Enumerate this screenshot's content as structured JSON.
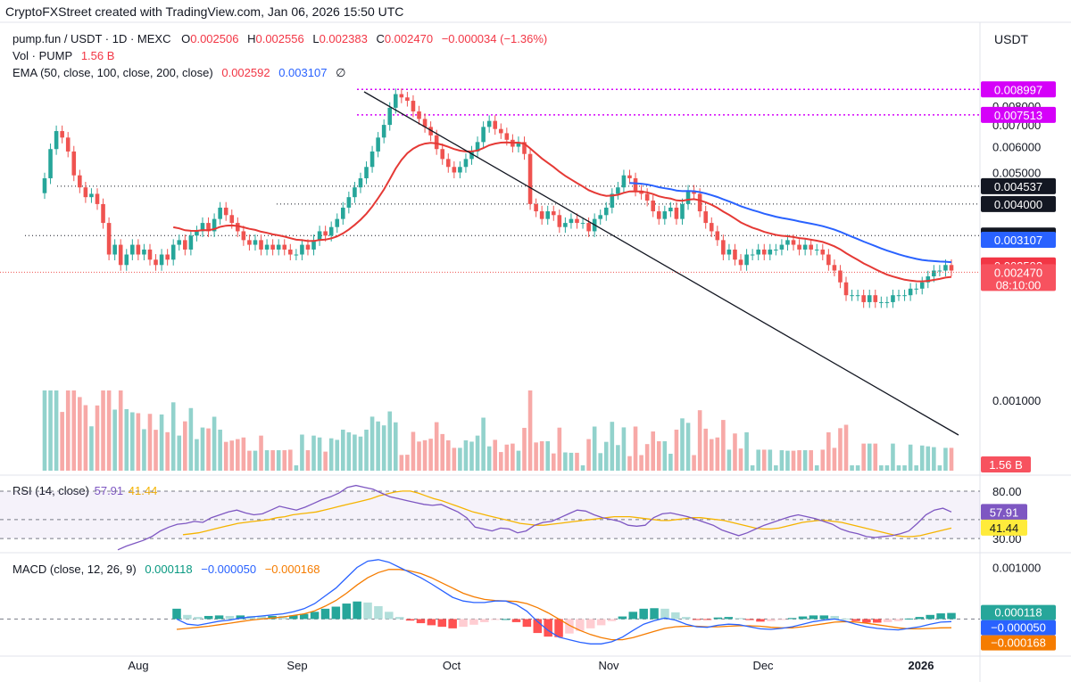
{
  "credit": "CryptoFXStreet created with TradingView.com, Jan 06, 2026 15:50 UTC",
  "currency": "USDT",
  "header": {
    "symbol": "pump.fun / USDT · 1D · MEXC",
    "o_label": "O",
    "o_value": "0.002506",
    "h_label": "H",
    "h_value": "0.002556",
    "l_label": "L",
    "l_value": "0.002383",
    "c_label": "C",
    "c_value": "0.002470",
    "change": "−0.000034 (−1.36%)",
    "vol_label": "Vol · PUMP",
    "vol_value": "1.56 B",
    "ema_label": "EMA (50, close, 100, close, 200, close)",
    "ema1_value": "0.002592",
    "ema2_value": "0.003107",
    "ema3_value": "∅"
  },
  "rsi_header": {
    "label": "RSI (14, close)",
    "v1": "57.91",
    "v2": "41.44"
  },
  "macd_header": {
    "label": "MACD (close, 12, 26, 9)",
    "v1": "0.000118",
    "v2": "−0.000050",
    "v3": "−0.000168"
  },
  "colors": {
    "up": "#26a69a",
    "down": "#ef5350",
    "ema50": "#e53935",
    "ema100": "#2962ff",
    "rsi": "#7e57c2",
    "rsi_ma": "#f5b400",
    "macd": "#2962ff",
    "signal": "#f57c00",
    "level": "#d500f9"
  },
  "chart_data": [
    {
      "type": "candlestick",
      "title": "pump.fun / USDT · 1D · MEXC",
      "x_ticks": [
        "Aug",
        "Sep",
        "Oct",
        "Nov",
        "Dec",
        "2026"
      ],
      "y_ticks": [
        "0.008000",
        "0.007000",
        "0.006000",
        "0.005000",
        "0.004000",
        "0.001000"
      ],
      "ylim": [
        0.0006,
        0.0093
      ],
      "y_scale": "log",
      "grid": false,
      "closes": [
        0.0048,
        0.0059,
        0.0067,
        0.0064,
        0.0058,
        0.0049,
        0.0045,
        0.0042,
        0.0043,
        0.004,
        0.0035,
        0.0028,
        0.003,
        0.0026,
        0.0028,
        0.003,
        0.0028,
        0.0029,
        0.0027,
        0.0026,
        0.0028,
        0.0027,
        0.003,
        0.0031,
        0.0029,
        0.0032,
        0.0033,
        0.0035,
        0.0033,
        0.0036,
        0.0039,
        0.0037,
        0.0035,
        0.0033,
        0.0031,
        0.003,
        0.0031,
        0.0029,
        0.003,
        0.0029,
        0.003,
        0.0029,
        0.0028,
        0.0028,
        0.003,
        0.0029,
        0.0031,
        0.0033,
        0.0032,
        0.0034,
        0.0036,
        0.0039,
        0.0042,
        0.0045,
        0.0048,
        0.0052,
        0.0058,
        0.0064,
        0.007,
        0.0079,
        0.0087,
        0.0085,
        0.0083,
        0.0077,
        0.0073,
        0.0069,
        0.0065,
        0.0059,
        0.0055,
        0.0052,
        0.005,
        0.0052,
        0.0055,
        0.0058,
        0.0062,
        0.0069,
        0.0072,
        0.0068,
        0.0066,
        0.0063,
        0.006,
        0.0062,
        0.0057,
        0.004,
        0.0038,
        0.0036,
        0.0038,
        0.0037,
        0.0034,
        0.0035,
        0.0036,
        0.0035,
        0.0035,
        0.0033,
        0.0036,
        0.0037,
        0.0039,
        0.0043,
        0.0045,
        0.0049,
        0.0048,
        0.0044,
        0.0043,
        0.0041,
        0.0038,
        0.0036,
        0.0038,
        0.0039,
        0.0036,
        0.004,
        0.0044,
        0.0043,
        0.0038,
        0.0035,
        0.0033,
        0.0031,
        0.0028,
        0.0029,
        0.0027,
        0.0026,
        0.0028,
        0.0028,
        0.0029,
        0.0028,
        0.0029,
        0.0029,
        0.003,
        0.0031,
        0.003,
        0.0029,
        0.003,
        0.0029,
        0.0029,
        0.0028,
        0.0026,
        0.0025,
        0.0023,
        0.0021,
        0.0021,
        0.0021,
        0.002,
        0.0021,
        0.002,
        0.002,
        0.002,
        0.0021,
        0.0021,
        0.0021,
        0.0022,
        0.0022,
        0.0023,
        0.0024,
        0.0025,
        0.0025,
        0.0026,
        0.0025
      ],
      "levels": [
        {
          "label": "0.008997",
          "value": 0.008997,
          "style": "magenta-dotted"
        },
        {
          "label": "0.007513",
          "value": 0.007513,
          "style": "magenta-dotted"
        },
        {
          "label": "0.004537",
          "value": 0.004537,
          "style": "dark-dotted"
        },
        {
          "label": "0.004000",
          "value": 0.004,
          "style": "dark-dotted"
        },
        {
          "label": "0.003202",
          "value": 0.003202,
          "style": "dark-dotted"
        }
      ],
      "price_tags": [
        {
          "label": "0.008997",
          "value": 0.008997
        },
        {
          "label": "0.007513",
          "value": 0.007513
        },
        {
          "label": "0.004537",
          "value": 0.004537
        },
        {
          "label": "0.004000",
          "value": 0.004
        },
        {
          "label": "0.003202",
          "value": 0.003202
        },
        {
          "label": "0.003107",
          "value": 0.003107
        },
        {
          "label": "0.002592",
          "value": 0.002592
        },
        {
          "label": "0.002470",
          "value": 0.00247,
          "sub": "08:10:00"
        }
      ],
      "volume_tag": "1.56 B"
    },
    {
      "type": "line",
      "title": "RSI (14, close)",
      "y_ticks": [
        "80.00",
        "30.00"
      ],
      "ylim": [
        15,
        95
      ],
      "series": [
        {
          "name": "RSI",
          "last_label": "57.91",
          "values": [
            18,
            22,
            25,
            28,
            32,
            38,
            42,
            45,
            46,
            48,
            47,
            52,
            55,
            58,
            60,
            57,
            55,
            56,
            60,
            64,
            62,
            60,
            63,
            67,
            71,
            74,
            78,
            84,
            86,
            84,
            82,
            78,
            74,
            72,
            70,
            68,
            66,
            65,
            66,
            62,
            58,
            52,
            42,
            40,
            38,
            41,
            40,
            36,
            38,
            44,
            47,
            48,
            52,
            56,
            60,
            59,
            55,
            52,
            50,
            48,
            44,
            43,
            44,
            52,
            56,
            57,
            55,
            53,
            50,
            47,
            44,
            39,
            36,
            33,
            36,
            40,
            44,
            47,
            50,
            53,
            55,
            53,
            51,
            48,
            45,
            40,
            37,
            35,
            32,
            31,
            32,
            33,
            35,
            38,
            46,
            55,
            60,
            62,
            58
          ]
        },
        {
          "name": "RSI MA",
          "last_label": "41.44",
          "values": [
            34,
            35,
            36,
            38,
            40,
            42,
            44,
            46,
            47,
            48,
            49,
            50,
            52,
            53,
            55,
            56,
            57,
            58,
            60,
            62,
            64,
            66,
            68,
            70,
            72,
            75,
            77,
            79,
            80,
            80,
            78,
            75,
            72,
            70,
            67,
            64,
            61,
            58,
            56,
            54,
            52,
            50,
            48,
            46,
            45,
            44,
            44,
            45,
            46,
            47,
            48,
            49,
            50,
            51,
            52,
            53,
            53,
            53,
            52,
            51,
            50,
            49,
            49,
            50,
            51,
            52,
            52,
            51,
            50,
            49,
            47,
            45,
            43,
            41,
            40,
            40,
            41,
            43,
            45,
            47,
            48,
            49,
            49,
            48,
            47,
            45,
            43,
            41,
            39,
            37,
            35,
            33,
            32,
            32,
            33,
            35,
            37,
            39,
            41
          ]
        }
      ]
    },
    {
      "type": "bar",
      "title": "MACD (close, 12, 26, 9)",
      "y_ticks": [
        "0.001000"
      ],
      "ylim": [
        -0.0007,
        0.00125
      ],
      "macd": [
        0.0,
        -0.0001,
        -0.00012,
        -8e-05,
        -4e-05,
        -2e-05,
        2e-05,
        4e-05,
        6e-05,
        8e-05,
        0.0001,
        0.00014,
        0.0002,
        0.0003,
        0.00045,
        0.0006,
        0.0008,
        0.001,
        0.00112,
        0.00115,
        0.0011,
        0.001,
        0.0009,
        0.0008,
        0.00068,
        0.00055,
        0.00042,
        0.00035,
        0.00032,
        0.00032,
        0.00035,
        0.00035,
        0.00028,
        0.00015,
        -5e-05,
        -0.00022,
        -0.00035,
        -0.0004,
        -0.00045,
        -0.00048,
        -0.00048,
        -0.00044,
        -0.00035,
        -0.00022,
        -0.0001,
        -3e-05,
        2e-05,
        -2e-05,
        -0.0001,
        -0.00015,
        -0.00016,
        -0.00012,
        -0.0001,
        -0.00011,
        -0.00015,
        -0.00019,
        -0.0002,
        -0.00018,
        -0.00015,
        -0.0001,
        -5e-05,
        -2e-05,
        0.0,
        -4e-05,
        -0.0001,
        -0.00015,
        -0.00018,
        -0.0002,
        -0.00021,
        -0.00018,
        -0.00015,
        -0.0001,
        -6e-05,
        -5e-05
      ],
      "signal": [
        -0.0002,
        -0.00018,
        -0.00016,
        -0.00014,
        -0.00011,
        -8e-05,
        -5e-05,
        -2e-05,
        0.0,
        2e-05,
        4e-05,
        7e-05,
        0.0001,
        0.00016,
        0.00025,
        0.00036,
        0.0005,
        0.00066,
        0.0008,
        0.0009,
        0.00096,
        0.00096,
        0.00093,
        0.00088,
        0.0008,
        0.0007,
        0.0006,
        0.0005,
        0.00043,
        0.00038,
        0.00036,
        0.00035,
        0.00034,
        0.0003,
        0.00022,
        0.00012,
        0.0,
        -0.00012,
        -0.00022,
        -0.0003,
        -0.00036,
        -0.0004,
        -0.0004,
        -0.00036,
        -0.0003,
        -0.00024,
        -0.00018,
        -0.00015,
        -0.00014,
        -0.00014,
        -0.00015,
        -0.00015,
        -0.00014,
        -0.00013,
        -0.00013,
        -0.00014,
        -0.00016,
        -0.00017,
        -0.00017,
        -0.00015,
        -0.00012,
        -9e-05,
        -6e-05,
        -5e-05,
        -6e-05,
        -8e-05,
        -0.00011,
        -0.00014,
        -0.00017,
        -0.00019,
        -0.00019,
        -0.00018,
        -0.00017,
        -0.000168
      ],
      "series": [
        {
          "name": "MACD",
          "last_label": "−0.000050"
        },
        {
          "name": "Signal",
          "last_label": "−0.000168"
        },
        {
          "name": "Histogram",
          "last_label": "0.000118"
        }
      ]
    }
  ]
}
